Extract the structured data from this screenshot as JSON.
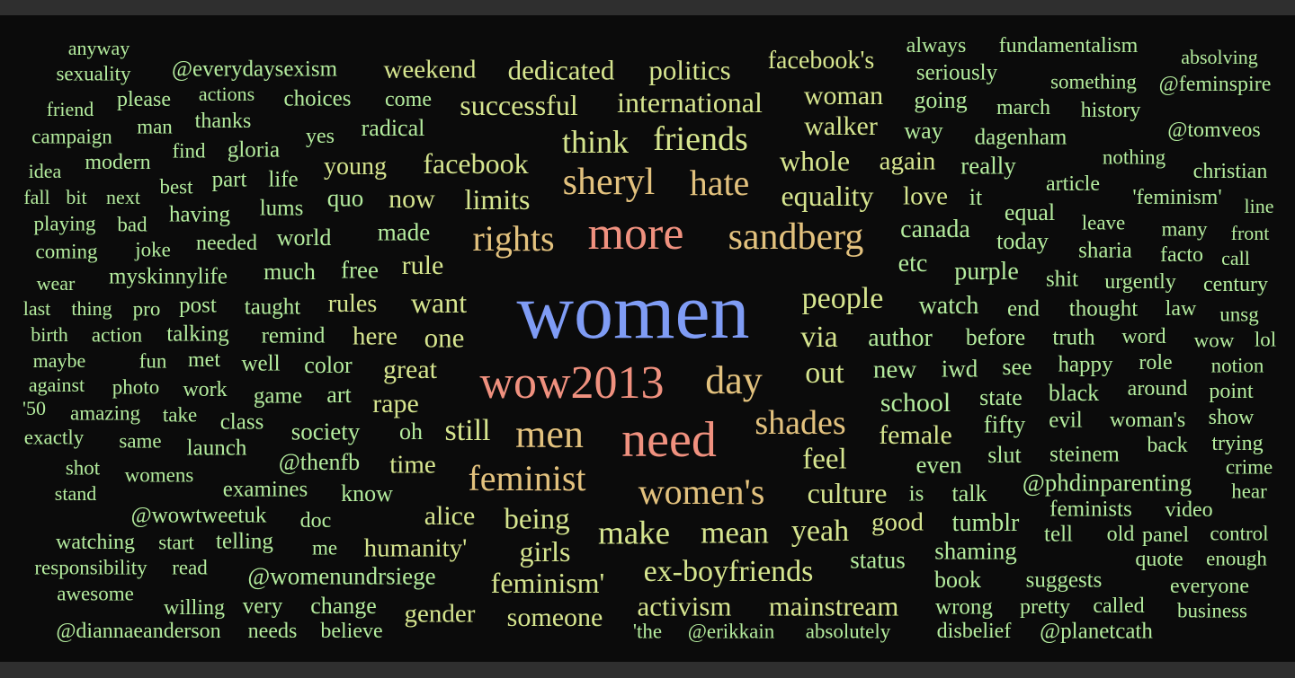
{
  "word_cloud": {
    "words": [
      "anyway",
      "sexuality",
      "@everydaysexism",
      "weekend",
      "dedicated",
      "politics",
      "facebook's",
      "always",
      "fundamentalism",
      "absolving",
      "seriously",
      "something",
      "@feminspire",
      "friend",
      "please",
      "actions",
      "choices",
      "come",
      "successful",
      "international",
      "woman",
      "going",
      "march",
      "history",
      "campaign",
      "man",
      "thanks",
      "yes",
      "radical",
      "walker",
      "way",
      "dagenham",
      "@tomveos",
      "think",
      "friends",
      "find",
      "gloria",
      "idea",
      "modern",
      "young",
      "facebook",
      "whole",
      "again",
      "really",
      "nothing",
      "christian",
      "best",
      "part",
      "life",
      "sheryl",
      "hate",
      "equality",
      "love",
      "it",
      "article",
      "'feminism'",
      "fall",
      "bit",
      "next",
      "quo",
      "now",
      "limits",
      "equal",
      "line",
      "playing",
      "bad",
      "having",
      "lums",
      "leave",
      "many",
      "front",
      "coming",
      "joke",
      "needed",
      "world",
      "made",
      "rights",
      "more",
      "sandberg",
      "canada",
      "today",
      "sharia",
      "facto",
      "call",
      "wear",
      "myskinnylife",
      "much",
      "free",
      "rule",
      "etc",
      "purple",
      "shit",
      "urgently",
      "century",
      "last",
      "thing",
      "pro",
      "post",
      "taught",
      "rules",
      "want",
      "women",
      "people",
      "watch",
      "end",
      "thought",
      "law",
      "unsg",
      "birth",
      "action",
      "talking",
      "remind",
      "here",
      "one",
      "via",
      "author",
      "before",
      "truth",
      "word",
      "wow",
      "lol",
      "maybe",
      "fun",
      "met",
      "well",
      "color",
      "great",
      "new",
      "iwd",
      "see",
      "happy",
      "role",
      "notion",
      "against",
      "photo",
      "work",
      "game",
      "art",
      "wow2013",
      "day",
      "out",
      "school",
      "state",
      "black",
      "around",
      "point",
      "'50",
      "amazing",
      "take",
      "class",
      "rape",
      "shades",
      "fifty",
      "evil",
      "woman's",
      "show",
      "exactly",
      "same",
      "launch",
      "society",
      "oh",
      "still",
      "men",
      "need",
      "female",
      "slut",
      "steinem",
      "back",
      "trying",
      "shot",
      "womens",
      "@thenfb",
      "time",
      "feel",
      "even",
      "crime",
      "feminist",
      "stand",
      "examines",
      "know",
      "women's",
      "culture",
      "is",
      "talk",
      "@phdinparenting",
      "hear",
      "feminists",
      "video",
      "@wowtweetuk",
      "doc",
      "alice",
      "being",
      "good",
      "tumblr",
      "watching",
      "start",
      "telling",
      "me",
      "humanity'",
      "girls",
      "make",
      "mean",
      "yeah",
      "tell",
      "old",
      "panel",
      "control",
      "shaming",
      "responsibility",
      "read",
      "@womenundrsiege",
      "ex-boyfriends",
      "status",
      "quote",
      "enough",
      "feminism'",
      "book",
      "suggests",
      "awesome",
      "willing",
      "very",
      "change",
      "activism",
      "mainstream",
      "everyone",
      "gender",
      "someone",
      "wrong",
      "pretty",
      "called",
      "business",
      "@diannaeanderson",
      "needs",
      "believe",
      "'the",
      "@erikkain",
      "absolutely",
      "disbelief",
      "@planetcath"
    ]
  }
}
